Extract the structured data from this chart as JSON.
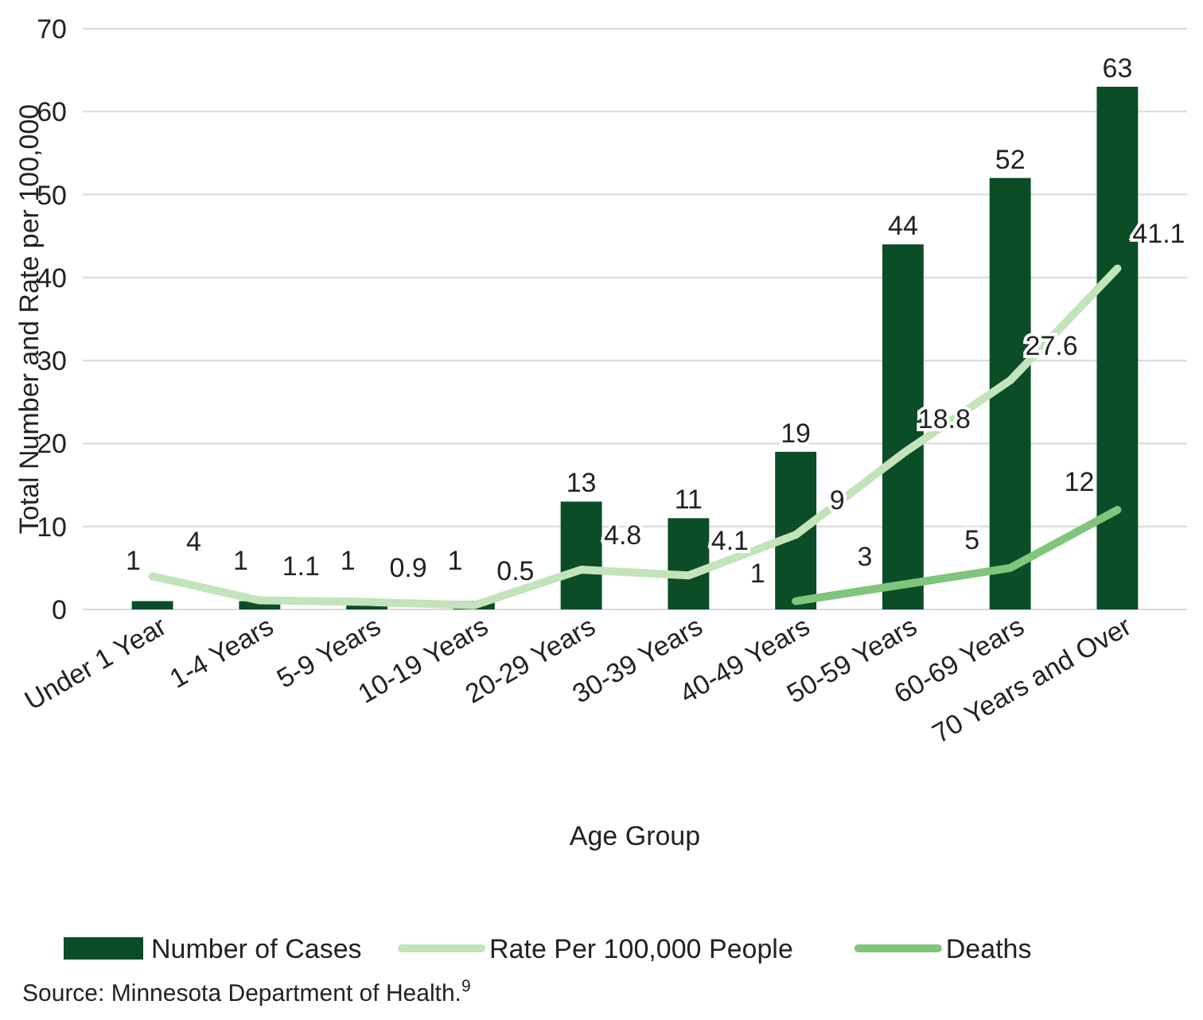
{
  "chart_data": {
    "type": "bar",
    "xlabel": "Age Group",
    "ylabel": "Total Number and Rate per 100,000",
    "categories": [
      "Under 1 Year",
      "1-4 Years",
      "5-9 Years",
      "10-19 Years",
      "20-29 Years",
      "30-39 Years",
      "40-49 Years",
      "50-59 Years",
      "60-69 Years",
      "70 Years and Over"
    ],
    "series": [
      {
        "name": "Number of Cases",
        "color": "#0b4d26",
        "values": [
          1,
          1,
          1,
          1,
          13,
          11,
          19,
          44,
          52,
          63
        ]
      },
      {
        "name": "Rate Per 100,000 People",
        "type": "line",
        "color": "#c3e3bb",
        "values": [
          4,
          1.1,
          0.9,
          0.5,
          4.8,
          4.1,
          9,
          18.8,
          27.6,
          41.1
        ]
      },
      {
        "name": "Deaths",
        "type": "line",
        "color": "#80c57b",
        "values": [
          null,
          null,
          null,
          null,
          null,
          null,
          1,
          3,
          5,
          12
        ]
      }
    ],
    "ylim": [
      0,
      70
    ],
    "yticks": [
      0,
      10,
      20,
      30,
      40,
      50,
      60,
      70
    ],
    "grid": "y",
    "legend": "bottom",
    "data_labels": true,
    "marker": "none",
    "annotations": [
      "Source: Minnesota Department of Health.$^{9}$"
    ]
  }
}
